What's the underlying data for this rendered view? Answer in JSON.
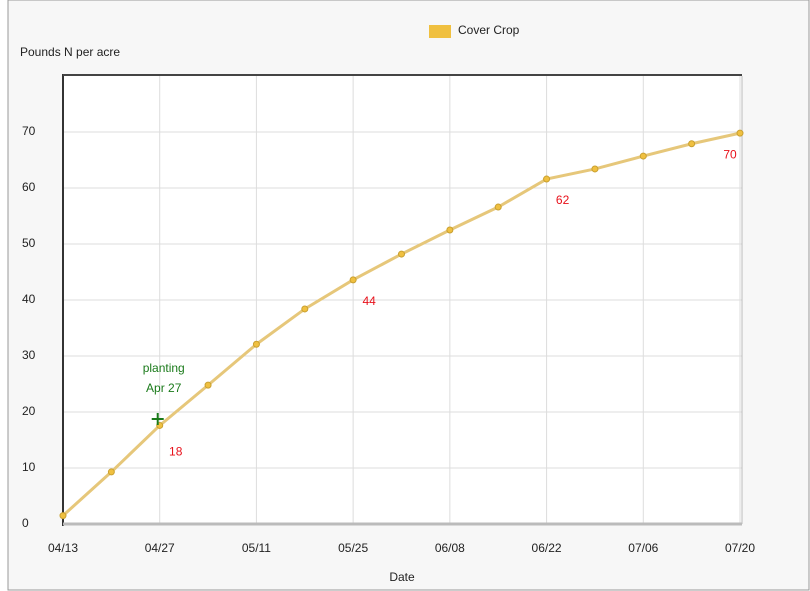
{
  "chart_data": {
    "type": "line",
    "legend": "Cover Crop",
    "ylabel": "Pounds N per acre",
    "xlabel": "Date",
    "categories": [
      "04/13",
      null,
      "04/27",
      null,
      "05/11",
      null,
      "05/25",
      null,
      "06/08",
      null,
      "06/22",
      null,
      "07/06",
      null,
      "07/20"
    ],
    "series": [
      {
        "name": "Cover Crop",
        "color": "#f0c040",
        "values": [
          1.5,
          9.3,
          17.6,
          24.8,
          32.1,
          38.4,
          43.6,
          48.2,
          52.5,
          56.6,
          61.6,
          63.4,
          65.7,
          67.9,
          69.8
        ],
        "value_labels": [
          null,
          null,
          "18",
          null,
          null,
          null,
          "44",
          null,
          null,
          null,
          "62",
          null,
          null,
          null,
          "70"
        ]
      }
    ],
    "ylim": [
      0,
      80
    ],
    "yticks": [
      0,
      10,
      20,
      30,
      40,
      50,
      60,
      70
    ],
    "grid": true,
    "annotation": {
      "lines": [
        "planting",
        "Apr 27"
      ],
      "x": "04/27",
      "y": 18.75,
      "color": "#1a7a1a"
    }
  }
}
